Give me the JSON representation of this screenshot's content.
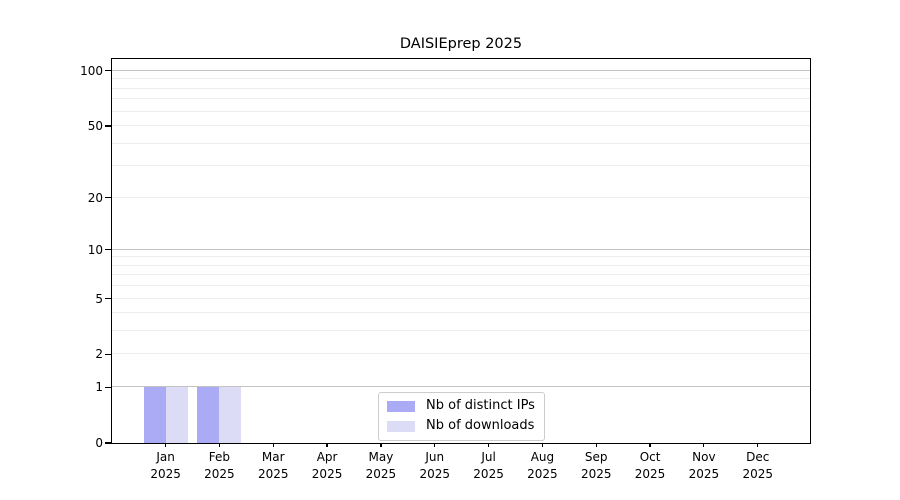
{
  "title": "DAISIEprep 2025",
  "legend": {
    "items": [
      {
        "label": "Nb of distinct IPs",
        "color": "#aaaaf5"
      },
      {
        "label": "Nb of downloads",
        "color": "#dcdcf7"
      }
    ]
  },
  "colors": {
    "background": "#ffffff",
    "axis": "#000000",
    "grid_major": "#c3c3c3",
    "grid_minor": "#ececec",
    "bar_distinct_ips": "#aaaaf5",
    "bar_downloads": "#dcdcf7",
    "legend_border": "#cccccc"
  },
  "chart_data": {
    "type": "bar",
    "title": "DAISIEprep 2025",
    "xlabel": "",
    "ylabel": "",
    "months": [
      "Jan",
      "Feb",
      "Mar",
      "Apr",
      "May",
      "Jun",
      "Jul",
      "Aug",
      "Sep",
      "Oct",
      "Nov",
      "Dec"
    ],
    "year": "2025",
    "series": [
      {
        "name": "Nb of distinct IPs",
        "key": "distinct-ips",
        "color": "#aaaaf5",
        "values": [
          1,
          1,
          0,
          0,
          0,
          0,
          0,
          0,
          0,
          0,
          0,
          0
        ]
      },
      {
        "name": "Nb of downloads",
        "key": "downloads",
        "color": "#dcdcf7",
        "values": [
          1,
          1,
          0,
          0,
          0,
          0,
          0,
          0,
          0,
          0,
          0,
          0
        ]
      }
    ],
    "yscale": "log1p",
    "yticks": [
      0,
      1,
      2,
      5,
      10,
      20,
      50,
      100
    ],
    "grid_major": [
      1,
      10,
      100
    ],
    "grid_minor": [
      2,
      3,
      4,
      5,
      6,
      7,
      8,
      9,
      20,
      30,
      40,
      50,
      60,
      70,
      80,
      90
    ],
    "ylim": [
      0,
      116
    ],
    "grid": true,
    "legend_position": "lower center"
  }
}
